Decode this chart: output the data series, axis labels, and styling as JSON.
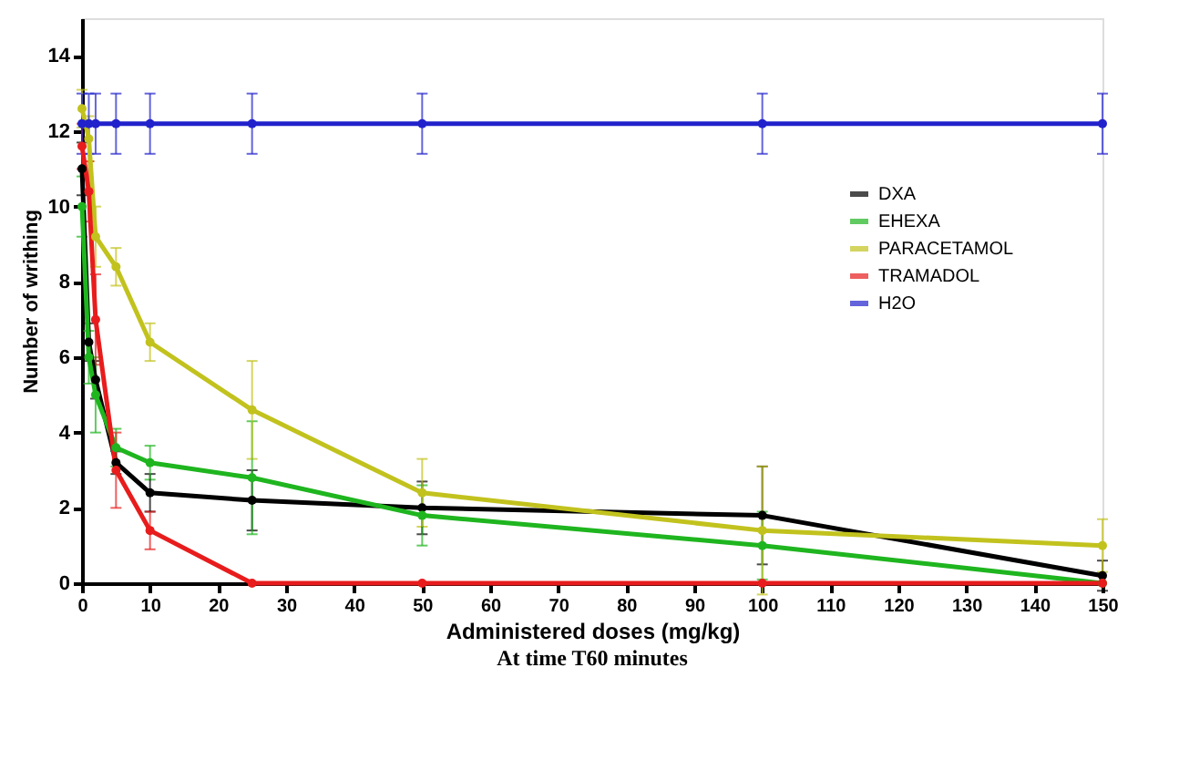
{
  "chart_data": {
    "type": "line",
    "xlabel": "Administered doses (mg/kg)",
    "ylabel": "Number of writhing",
    "x": [
      0,
      1,
      2,
      5,
      10,
      25,
      50,
      100,
      150
    ],
    "series": [
      {
        "name": "DXA",
        "color": "#000000",
        "values": [
          11,
          6.4,
          5.4,
          3.2,
          2.4,
          2.2,
          2.0,
          1.8,
          0.2
        ],
        "errors": [
          0.7,
          0.5,
          0.5,
          0.3,
          0.5,
          0.8,
          0.7,
          1.3,
          0.4
        ]
      },
      {
        "name": "EHEXA",
        "color": "#1fb51f",
        "values": [
          10,
          6,
          5,
          3.6,
          3.2,
          2.8,
          1.8,
          1.0,
          0
        ],
        "errors": [
          0.8,
          0.7,
          1.0,
          0.5,
          0.45,
          1.5,
          0.8,
          0.9,
          null
        ]
      },
      {
        "name": "PARACETAMOL",
        "color": "#c2c21e",
        "values": [
          12.6,
          11.8,
          9.2,
          8.4,
          6.4,
          4.6,
          2.4,
          1.4,
          1.0
        ],
        "errors": [
          0.5,
          0.6,
          0.8,
          0.5,
          0.5,
          1.3,
          0.9,
          1.7,
          0.7
        ]
      },
      {
        "name": "TRAMADOL",
        "color": "#e81c1c",
        "values": [
          11.6,
          10.4,
          7,
          3,
          1.4,
          0,
          0,
          0,
          0
        ],
        "errors": [
          0.6,
          0.8,
          1.2,
          1.0,
          0.5,
          null,
          null,
          null,
          null
        ]
      },
      {
        "name": "H2O",
        "color": "#2222cc",
        "values": [
          12.2,
          12.2,
          12.2,
          12.2,
          12.2,
          12.2,
          12.2,
          12.2,
          12.2
        ],
        "errors": [
          0.8,
          0.8,
          0.8,
          0.8,
          0.8,
          0.8,
          0.8,
          0.8,
          0.8
        ]
      }
    ],
    "xlim": [
      0,
      150
    ],
    "xticks": [
      0,
      10,
      20,
      30,
      40,
      50,
      60,
      70,
      80,
      90,
      100,
      110,
      120,
      130,
      140,
      150
    ],
    "ylim": [
      0,
      15
    ],
    "yticks": [
      0,
      2,
      4,
      6,
      8,
      10,
      12,
      14
    ],
    "legend": "right",
    "grid": false,
    "marker": "circle",
    "line_style": "solid",
    "annotations": [
      "At time T60 minutes"
    ]
  }
}
